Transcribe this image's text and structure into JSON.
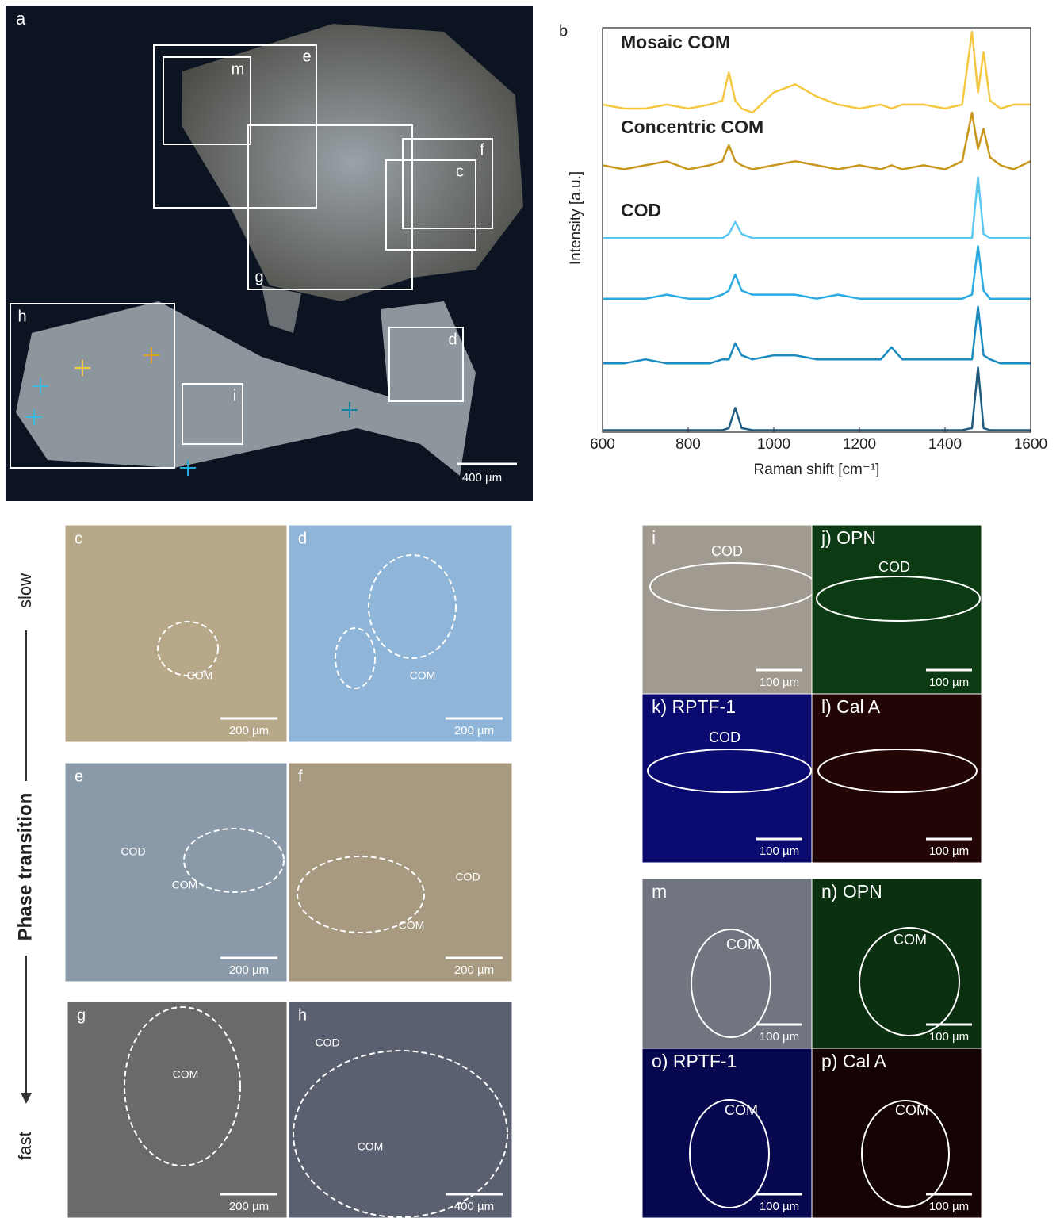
{
  "panel_a": {
    "label": "a",
    "boxes": [
      "m",
      "e",
      "f",
      "c",
      "g",
      "h",
      "i",
      "d"
    ],
    "scale": "400 µm"
  },
  "panel_b": {
    "label": "b"
  },
  "chart_data": {
    "type": "line",
    "x_label": "Raman shift [cm⁻¹]",
    "y_label": "Intensity [a.u.]",
    "x": [
      600,
      650,
      700,
      750,
      800,
      850,
      880,
      895,
      910,
      925,
      950,
      1000,
      1050,
      1100,
      1150,
      1200,
      1250,
      1275,
      1300,
      1350,
      1400,
      1440,
      1463,
      1477,
      1490,
      1505,
      1530,
      1560,
      1600
    ],
    "xlim": [
      600,
      1600
    ],
    "xticks": [
      600,
      800,
      1000,
      1200,
      1400,
      1600
    ],
    "ylim": [
      0,
      100
    ],
    "grid": false,
    "series": [
      {
        "name": "Mosaic COM",
        "color": "#f5c842",
        "values": [
          81,
          80,
          80,
          81,
          80,
          81,
          82,
          89,
          82,
          80,
          79,
          84,
          86,
          83,
          81,
          80,
          81,
          80,
          81,
          81,
          80,
          81,
          99,
          84,
          94,
          82,
          80,
          81,
          81
        ]
      },
      {
        "name": "Concentric COM",
        "color": "#c8961a",
        "values": [
          66,
          65,
          66,
          67,
          65,
          66,
          67,
          71,
          67,
          66,
          65,
          66,
          67,
          66,
          65,
          66,
          65,
          66,
          65,
          66,
          65,
          67,
          79,
          70,
          75,
          68,
          66,
          65,
          67
        ]
      },
      {
        "name": "COD",
        "color": "#5bc8f0",
        "values": [
          48,
          48,
          48,
          48,
          48,
          48,
          48,
          49,
          52,
          49,
          48,
          48,
          48,
          48,
          48,
          48,
          48,
          48,
          48,
          48,
          48,
          48,
          48,
          63,
          49,
          48,
          48,
          48,
          48
        ]
      },
      {
        "color": "#29abe2",
        "values": [
          33,
          33,
          33,
          34,
          33,
          33,
          34,
          35,
          39,
          35,
          34,
          34,
          34,
          33,
          34,
          33,
          33,
          33,
          33,
          33,
          33,
          33,
          34,
          46,
          35,
          33,
          33,
          33,
          33
        ]
      },
      {
        "color": "#1a8bc0",
        "values": [
          17,
          17,
          18,
          17,
          17,
          17,
          18,
          18,
          22,
          19,
          18,
          19,
          19,
          18,
          18,
          18,
          18,
          21,
          18,
          18,
          18,
          18,
          18,
          31,
          19,
          18,
          17,
          17,
          17
        ]
      },
      {
        "color": "#1f5a80",
        "values": [
          0.5,
          0.5,
          0.5,
          0.5,
          0.5,
          0.5,
          0.5,
          1,
          6,
          1,
          0.5,
          0.5,
          0.5,
          0.5,
          0.5,
          0.5,
          0.5,
          0.5,
          0.5,
          0.5,
          0.5,
          0.5,
          1,
          16,
          1,
          0.5,
          0.5,
          0.5,
          0.5
        ]
      }
    ]
  },
  "side_labels": {
    "top": "slow",
    "middle": "Phase transition",
    "bottom": "fast"
  },
  "panels": [
    {
      "label": "c",
      "notes": [
        "COM"
      ],
      "scale": "200 µm"
    },
    {
      "label": "d",
      "notes": [
        "COM"
      ],
      "scale": "200 µm"
    },
    {
      "label": "e",
      "notes": [
        "COD",
        "COM"
      ],
      "scale": "200 µm"
    },
    {
      "label": "f",
      "notes": [
        "COD",
        "COM"
      ],
      "scale": "200 µm"
    },
    {
      "label": "g",
      "notes": [
        "COM"
      ],
      "scale": "200 µm"
    },
    {
      "label": "h",
      "notes": [
        "COD",
        "COM"
      ],
      "scale": "400 µm"
    },
    {
      "label": "i",
      "notes": [
        "COD"
      ],
      "scale": "100 µm"
    },
    {
      "label": "j) OPN",
      "notes": [
        "COD"
      ],
      "scale": "100 µm"
    },
    {
      "label": "k) RPTF-1",
      "notes": [
        "COD"
      ],
      "scale": "100 µm"
    },
    {
      "label": "l) Cal A",
      "notes": [],
      "scale": "100 µm"
    },
    {
      "label": "m",
      "notes": [
        "COM"
      ],
      "scale": "100 µm"
    },
    {
      "label": "n) OPN",
      "notes": [
        "COM"
      ],
      "scale": "100 µm"
    },
    {
      "label": "o) RPTF-1",
      "notes": [
        "COM"
      ],
      "scale": "100 µm"
    },
    {
      "label": "p) Cal A",
      "notes": [
        "COM"
      ],
      "scale": "100 µm"
    }
  ]
}
